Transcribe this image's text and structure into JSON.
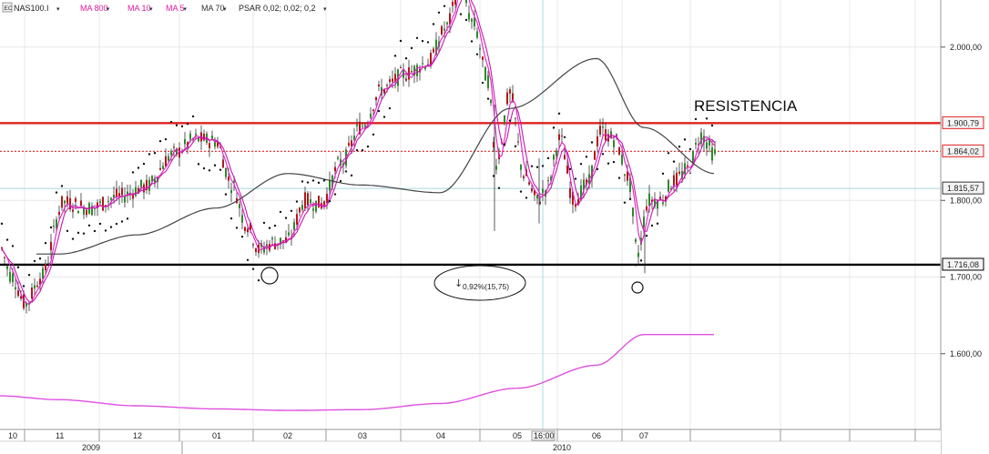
{
  "symbol": {
    "icon_text": "EC",
    "name": "NAS100.I",
    "indicators": [
      {
        "label": "MA 800",
        "color": "#e0189f"
      },
      {
        "label": "MA 10",
        "color": "#e0189f"
      },
      {
        "label": "MA 5",
        "color": "#e0189f"
      },
      {
        "label": "MA 70",
        "color": "#333333"
      },
      {
        "label": "PSAR 0,02; 0,02; 0,2",
        "color": "#222222"
      }
    ]
  },
  "annotations": {
    "resistance_label": "RESISTENCIA",
    "drop_label": "0,92%(15,75)",
    "drop_arrow": "↓"
  },
  "colors": {
    "resistance": "#e02020",
    "support": "#000000",
    "ma_fast": "#e020c0",
    "ma_long": "#e050e0",
    "ma_mid": "#444444",
    "candle_up": "#2a8a2a",
    "candle_down": "#b01818",
    "grid": "#e8e8e8",
    "crosshair": "#a8d8e0",
    "price_label_bg": "#f4f4f4"
  },
  "chart_data": {
    "type": "line",
    "title": "",
    "y_axis": {
      "ticks": [
        {
          "value": 2000,
          "label": "2.000,00"
        },
        {
          "value": 1800,
          "label": "1.800,00"
        },
        {
          "value": 1700,
          "label": "1.700,00"
        },
        {
          "value": 1600,
          "label": "1.600,00"
        }
      ],
      "range": [
        1500,
        2120
      ]
    },
    "x_axis": {
      "month_labels": [
        "10",
        "11",
        "12",
        "01",
        "02",
        "03",
        "04",
        "05",
        "16:00",
        "06",
        "07"
      ],
      "year_labels": [
        "2009",
        "2010"
      ]
    },
    "price_labels": [
      {
        "value": 1900.79,
        "label": "1.900,79",
        "color": "#e02020",
        "style": "solid"
      },
      {
        "value": 1864.02,
        "label": "1.864,02",
        "color": "#e02020",
        "style": "dotted"
      },
      {
        "value": 1815.57,
        "label": "1.815,57",
        "color": "#a8d8e0",
        "style": "crosshair"
      },
      {
        "value": 1716.08,
        "label": "1.716,08",
        "color": "#000000",
        "style": "solid"
      }
    ],
    "series": [
      {
        "name": "MA 800",
        "x": [
          "10",
          "11",
          "12",
          "01",
          "02",
          "03",
          "04",
          "05",
          "06",
          "07"
        ],
        "values": [
          1545,
          1540,
          1532,
          1528,
          1526,
          1527,
          1535,
          1555,
          1585,
          1625
        ]
      },
      {
        "name": "MA 70",
        "x": [
          "10",
          "11",
          "12",
          "01",
          "02",
          "03",
          "04",
          "05",
          "06",
          "07"
        ],
        "values": [
          1730,
          1755,
          1790,
          1835,
          1820,
          1810,
          1920,
          1985,
          1895,
          1845
        ]
      },
      {
        "name": "NAS100.I",
        "x": [
          "10",
          "11",
          "12",
          "01",
          "02",
          "03",
          "04",
          "05",
          "06",
          "07"
        ],
        "values": [
          1700,
          1795,
          1820,
          1880,
          1740,
          1880,
          1990,
          1790,
          1880,
          1865
        ]
      }
    ]
  }
}
